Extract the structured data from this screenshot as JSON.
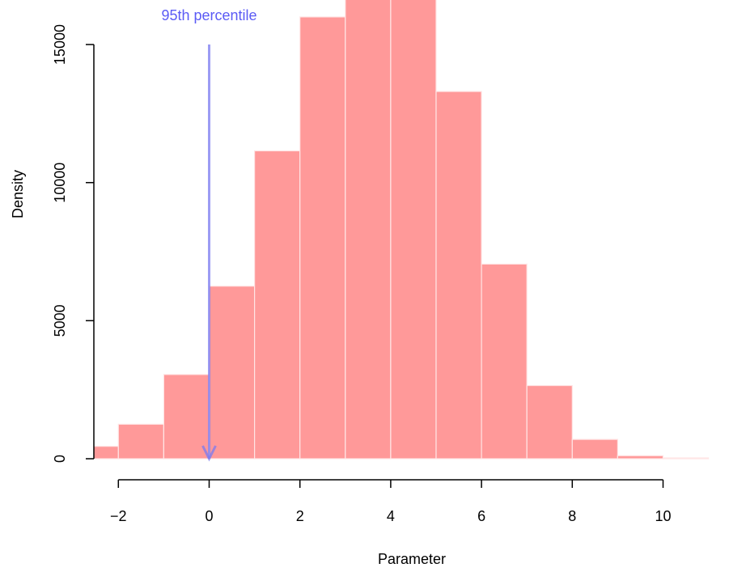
{
  "chart_data": {
    "type": "bar",
    "xlabel": "Parameter",
    "ylabel": "Density",
    "bin_edges": [
      -3,
      -2,
      -1,
      0,
      1,
      2,
      3,
      4,
      5,
      6,
      7,
      8,
      9,
      10,
      11
    ],
    "values": [
      450,
      1250,
      3050,
      6250,
      11150,
      16000,
      17000,
      17000,
      13300,
      7050,
      2650,
      700,
      110,
      30
    ],
    "xticks": [
      -2,
      0,
      2,
      4,
      6,
      8,
      10
    ],
    "xtick_labels": [
      "−2",
      "0",
      "2",
      "4",
      "6",
      "8",
      "10"
    ],
    "yticks": [
      0,
      5000,
      10000,
      15000
    ],
    "ytick_labels": [
      "0",
      "5000",
      "10000",
      "15000"
    ],
    "xlim": [
      -2.5,
      11.5
    ],
    "bar_color": "#FF9999",
    "bar_edge_color": "#FFE5E5",
    "annotation": {
      "text": "95th percentile",
      "x": 0,
      "y_top": 15000,
      "y_bottom": 0,
      "color": "#7B7BF0"
    },
    "grid": false,
    "legend": false
  }
}
